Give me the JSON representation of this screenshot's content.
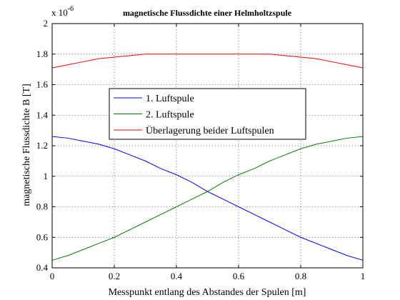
{
  "chart_data": {
    "type": "line",
    "title": "magnetische Flussdichte einer Helmholtzspule",
    "xlabel": "Messpunkt entlang des Abstandes der Spulen [m]",
    "ylabel": "magnetische Flussdichte B [T]",
    "y_exponent_base": "x 10",
    "y_exponent_power": "-6",
    "xlim": [
      0,
      1
    ],
    "ylim": [
      0.4,
      2
    ],
    "x_ticks": [
      0,
      0.2,
      0.4,
      0.6,
      0.8,
      1
    ],
    "x_tick_labels": [
      "0",
      "0.2",
      "0.4",
      "0.6",
      "0.8",
      "1"
    ],
    "y_ticks": [
      0.4,
      0.6,
      0.8,
      1,
      1.2,
      1.4,
      1.6,
      1.8,
      2
    ],
    "y_tick_labels": [
      "0.4",
      "0.6",
      "0.8",
      "1",
      "1.2",
      "1.4",
      "1.6",
      "1.8",
      "2"
    ],
    "grid": true,
    "legend_position": "center-left",
    "x": [
      0,
      0.05,
      0.1,
      0.15,
      0.2,
      0.25,
      0.3,
      0.35,
      0.4,
      0.45,
      0.5,
      0.55,
      0.6,
      0.65,
      0.7,
      0.75,
      0.8,
      0.85,
      0.9,
      0.95,
      1
    ],
    "series": [
      {
        "name": "1. Luftspule",
        "color": "#0000ff",
        "values": [
          1.26,
          1.25,
          1.23,
          1.21,
          1.18,
          1.14,
          1.1,
          1.05,
          1.01,
          0.96,
          0.9,
          0.85,
          0.8,
          0.75,
          0.7,
          0.65,
          0.6,
          0.56,
          0.52,
          0.48,
          0.45
        ]
      },
      {
        "name": "2. Luftspule",
        "color": "#008000",
        "values": [
          0.45,
          0.48,
          0.52,
          0.56,
          0.6,
          0.65,
          0.7,
          0.75,
          0.8,
          0.85,
          0.9,
          0.96,
          1.01,
          1.05,
          1.1,
          1.14,
          1.18,
          1.21,
          1.23,
          1.25,
          1.26
        ]
      },
      {
        "name": "Überlagerung beider Luftspulen",
        "color": "#ff0000",
        "values": [
          1.71,
          1.73,
          1.75,
          1.77,
          1.78,
          1.79,
          1.8,
          1.8,
          1.8,
          1.8,
          1.8,
          1.8,
          1.8,
          1.8,
          1.8,
          1.79,
          1.78,
          1.77,
          1.75,
          1.73,
          1.71
        ]
      }
    ]
  }
}
